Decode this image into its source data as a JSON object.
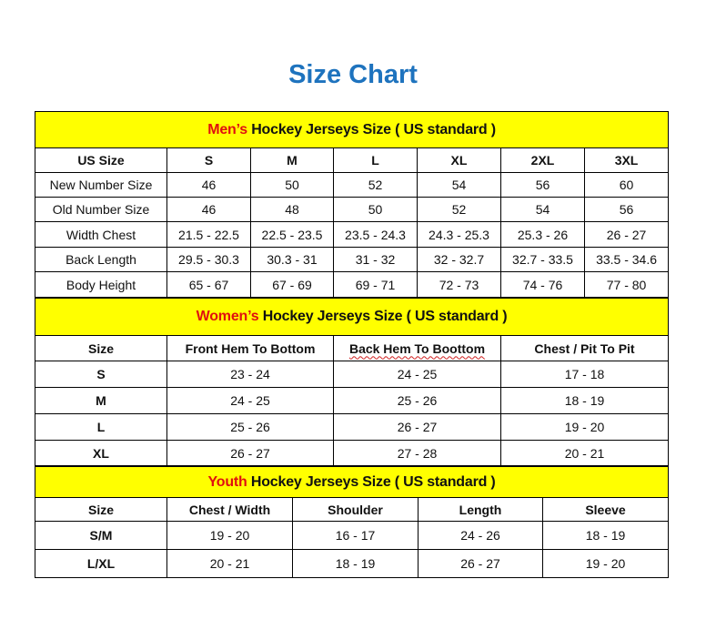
{
  "title": "Size Chart",
  "colors": {
    "title": "#1e73be",
    "banner": "#ffff00",
    "highlight": "#e01010"
  },
  "men": {
    "banner_highlight": "Men’s",
    "banner_rest": " Hockey Jerseys Size ( US standard )",
    "headers": [
      "US Size",
      "S",
      "M",
      "L",
      "XL",
      "2XL",
      "3XL"
    ],
    "rows": [
      [
        "New Number Size",
        "46",
        "50",
        "52",
        "54",
        "56",
        "60"
      ],
      [
        "Old Number Size",
        "46",
        "48",
        "50",
        "52",
        "54",
        "56"
      ],
      [
        "Width Chest",
        "21.5 - 22.5",
        "22.5 - 23.5",
        "23.5 - 24.3",
        "24.3 - 25.3",
        "25.3 - 26",
        "26 - 27"
      ],
      [
        "Back Length",
        "29.5 - 30.3",
        "30.3 - 31",
        "31 - 32",
        "32 - 32.7",
        "32.7 - 33.5",
        "33.5 - 34.6"
      ],
      [
        "Body Height",
        "65 - 67",
        "67 - 69",
        "69 - 71",
        "72 - 73",
        "74 - 76",
        "77 - 80"
      ]
    ]
  },
  "women": {
    "banner_highlight": "Women’s",
    "banner_rest": " Hockey Jerseys Size ( US standard )",
    "headers": [
      "Size",
      "Front Hem To Bottom",
      "Back Hem To Boottom",
      "Chest / Pit To Pit"
    ],
    "rows": [
      [
        "S",
        "23 - 24",
        "24 - 25",
        "17 - 18"
      ],
      [
        "M",
        "24 - 25",
        "25 - 26",
        "18 - 19"
      ],
      [
        "L",
        "25 - 26",
        "26 - 27",
        "19 - 20"
      ],
      [
        "XL",
        "26 - 27",
        "27 - 28",
        "20 - 21"
      ]
    ]
  },
  "youth": {
    "banner_highlight": "Youth",
    "banner_rest": " Hockey Jerseys Size ( US standard )",
    "headers": [
      "Size",
      "Chest / Width",
      "Shoulder",
      "Length",
      "Sleeve"
    ],
    "rows": [
      [
        "S/M",
        "19 - 20",
        "16 - 17",
        "24 - 26",
        "18 - 19"
      ],
      [
        "L/XL",
        "20 - 21",
        "18 - 19",
        "26 - 27",
        "19 - 20"
      ]
    ]
  }
}
